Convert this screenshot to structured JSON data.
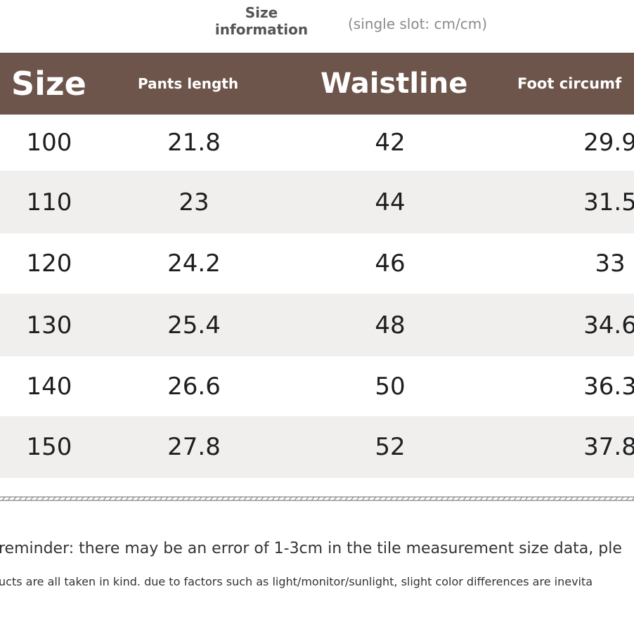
{
  "header": {
    "title": "Size\ninformation",
    "note": "(single slot: cm/cm)"
  },
  "table": {
    "columns": [
      "Size",
      "Pants length",
      "Waistline",
      "Foot circumf"
    ],
    "rows": [
      [
        "100",
        "21.8",
        "42",
        "29.9"
      ],
      [
        "110",
        "23",
        "44",
        "31.5"
      ],
      [
        "120",
        "24.2",
        "46",
        "33"
      ],
      [
        "130",
        "25.4",
        "48",
        "34.6"
      ],
      [
        "140",
        "26.6",
        "50",
        "36.3"
      ],
      [
        "150",
        "27.8",
        "52",
        "37.8"
      ]
    ]
  },
  "footer": {
    "lines": [
      "reminder: there may be an error of 1-3cm in the tile measurement size data, ple",
      "ucts are all taken in kind. due to factors such as light/monitor/sunlight, slight color differences are inevita"
    ]
  }
}
